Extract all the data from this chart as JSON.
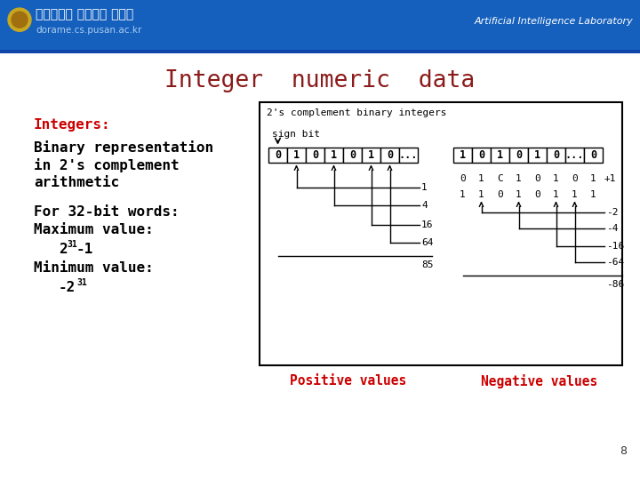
{
  "title": "Integer  numeric  data",
  "title_color": "#8B1A1A",
  "title_fontsize": 19,
  "bg_color": "#FFFFFF",
  "header_bg": "#1560BD",
  "header_text_left": "부산대학교 인공지능 연구실",
  "header_text_right": "Artificial Intelligence Laboratory",
  "header_subtext": "dorame.cs.pusan.ac.kr",
  "footer_bg": "#1a7fd4",
  "footer_top_bg": "#e8e8e8",
  "page_number": "8",
  "box_title": "2's complement binary integers",
  "pos_bits": [
    "0",
    "1",
    "0",
    "1",
    "0",
    "1",
    "0",
    "..."
  ],
  "neg_bits": [
    "1",
    "0",
    "1",
    "0",
    "1",
    "0",
    "...",
    "0"
  ],
  "neg_row1": [
    "0",
    "1",
    "C",
    "1",
    "0",
    "1",
    "0",
    "1"
  ],
  "neg_row2": [
    "1",
    "1",
    "0",
    "1",
    "0",
    "1",
    "1",
    "1"
  ],
  "pos_values": [
    "1",
    "4",
    "16",
    "64"
  ],
  "pos_total": "85",
  "neg_values": [
    "-2",
    "-4",
    "-16",
    "-64"
  ],
  "neg_total": "-86",
  "pos_label": "Positive values",
  "neg_label": "Negative values",
  "label_color": "#CC0000",
  "text_black": "#000000",
  "text_red": "#CC0000"
}
